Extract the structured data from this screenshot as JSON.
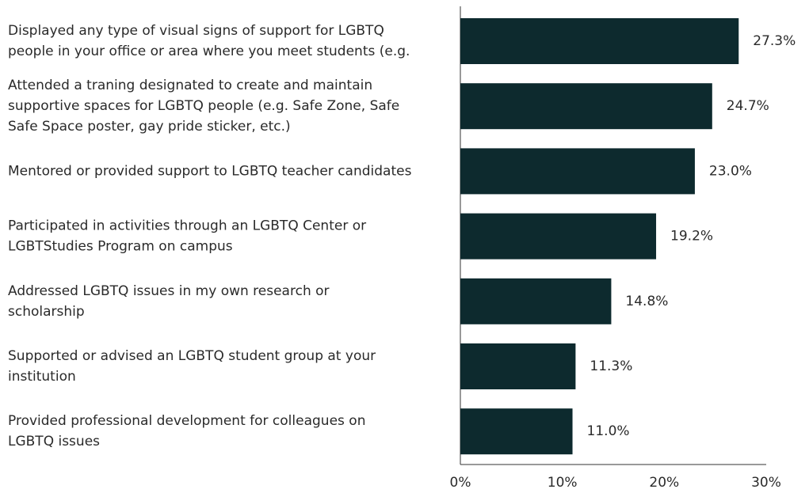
{
  "chart_data": {
    "type": "bar",
    "orientation": "horizontal",
    "categories": [
      [
        "Displayed any type of visual signs of support for LGBTQ",
        "people in your office or area where you meet students (e.g."
      ],
      [
        "Attended a traning designated to create and maintain",
        "supportive spaces for LGBTQ people (e.g. Safe Zone, Safe",
        "Safe Space poster, gay pride sticker, etc.)"
      ],
      [
        "Mentored or provided support to LGBTQ teacher candidates"
      ],
      [
        "Participated in activities through an LGBTQ Center or",
        "LGBTStudies Program on campus"
      ],
      [
        "Addressed LGBTQ issues in my own research or",
        "scholarship"
      ],
      [
        "Supported or advised an LGBTQ student group at your",
        "institution"
      ],
      [
        "Provided professional development for colleagues on",
        "LGBTQ issues"
      ]
    ],
    "values": [
      27.3,
      24.7,
      23.0,
      19.2,
      14.8,
      11.3,
      11.0
    ],
    "value_labels": [
      "27.3%",
      "24.7%",
      "23.0%",
      "19.2%",
      "14.8%",
      "11.3%",
      "11.0%"
    ],
    "color": "#0d2a2e",
    "xlim": [
      0,
      30
    ],
    "xticks": [
      {
        "value": 0,
        "label": "0%"
      },
      {
        "value": 10,
        "label": "10%"
      },
      {
        "value": 20,
        "label": "20%"
      },
      {
        "value": 30,
        "label": "30%"
      }
    ]
  }
}
